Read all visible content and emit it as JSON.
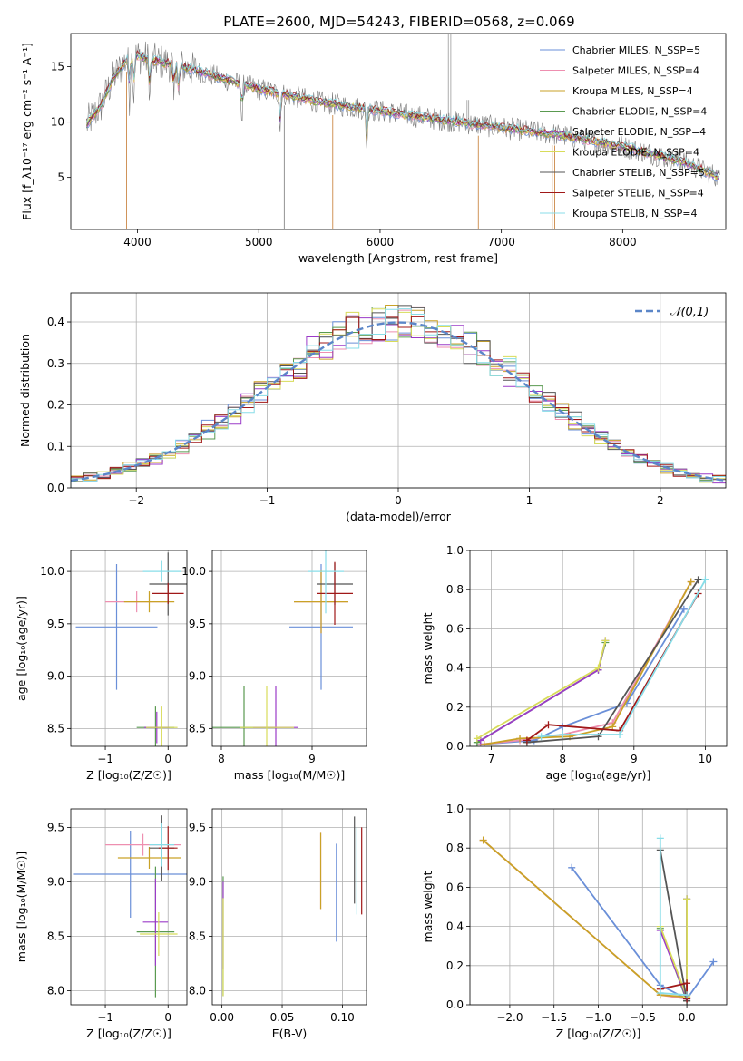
{
  "figure_title": "PLATE=2600, MJD=54243, FIBERID=0568, z=0.069",
  "colors": [
    "#6a8fd8",
    "#ee8fb0",
    "#c9a227",
    "#5a9a50",
    "#9b3bc8",
    "#d8dc5a",
    "#555555",
    "#a01818",
    "#88dde8"
  ],
  "chart_data": [
    {
      "id": "spectrum",
      "type": "line",
      "xlabel": "wavelength [Angstrom, rest frame]",
      "ylabel": "Flux [f_λ10⁻¹⁷ erg cm⁻² s⁻¹ A⁻¹]",
      "xlim": [
        3450,
        8850
      ],
      "ylim": [
        0.3,
        18
      ],
      "xticks": [
        4000,
        5000,
        6000,
        7000,
        8000
      ],
      "yticks": [
        5,
        10,
        15
      ],
      "grid": false,
      "legend_placement": "top-right",
      "series": [
        {
          "name": "Chabrier MILES, N_SSP=5"
        },
        {
          "name": "Salpeter MILES, N_SSP=4"
        },
        {
          "name": "Kroupa MILES, N_SSP=4"
        },
        {
          "name": "Chabrier ELODIE, N_SSP=4"
        },
        {
          "name": "Salpeter ELODIE, N_SSP=4"
        },
        {
          "name": "Kroupa ELODIE, N_SSP=4"
        },
        {
          "name": "Chabrier STELIB, N_SSP=5"
        },
        {
          "name": "Salpeter STELIB, N_SSP=4"
        },
        {
          "name": "Kroupa STELIB, N_SSP=4"
        }
      ],
      "continuum": {
        "x": [
          3580,
          3700,
          3800,
          3900,
          4000,
          4100,
          4300,
          4500,
          4800,
          5000,
          5500,
          6000,
          6500,
          7000,
          7500,
          8000,
          8500,
          8800
        ],
        "y": [
          9.8,
          11.5,
          14.0,
          15.5,
          16.0,
          15.6,
          15.2,
          14.6,
          13.6,
          13.0,
          11.8,
          11.0,
          10.2,
          9.5,
          8.8,
          7.8,
          6.4,
          5.0
        ]
      }
    },
    {
      "id": "residuals",
      "type": "step",
      "xlabel": "(data-model)/error",
      "ylabel": "Normed distribution",
      "xlim": [
        -2.5,
        2.5
      ],
      "ylim": [
        0,
        0.47
      ],
      "xticks": [
        -2,
        -1,
        0,
        1,
        2
      ],
      "yticks": [
        0.0,
        0.1,
        0.2,
        0.3,
        0.4
      ],
      "grid": true,
      "legend_placement": "top-right",
      "reference": {
        "name": "𝒩(0,1)",
        "mean": 0,
        "sigma": 1
      }
    },
    {
      "id": "age-vs-Z",
      "type": "errorbar",
      "xlabel": "Z [log₁₀(Z/Z☉)]",
      "ylabel": "age  [log₁₀(age/yr)]",
      "xlim": [
        -1.55,
        0.3
      ],
      "ylim": [
        8.33,
        10.2
      ],
      "xticks": [
        -1,
        0
      ],
      "yticks": [
        8.5,
        9.0,
        9.5,
        10.0
      ],
      "grid": true,
      "points": [
        {
          "c": 0,
          "x": -0.82,
          "xerr": 0.65,
          "y": 9.47,
          "yerr": 0.6
        },
        {
          "c": 1,
          "x": -0.5,
          "xerr": 0.5,
          "y": 9.71,
          "yerr": 0.1
        },
        {
          "c": 2,
          "x": -0.3,
          "xerr": 0.4,
          "y": 9.71,
          "yerr": 0.1
        },
        {
          "c": 3,
          "x": -0.2,
          "xerr": 0.3,
          "y": 8.51,
          "yerr": 0.2
        },
        {
          "c": 4,
          "x": -0.18,
          "xerr": 0.2,
          "y": 8.51,
          "yerr": 0.15
        },
        {
          "c": 5,
          "x": -0.1,
          "xerr": 0.25,
          "y": 8.51,
          "yerr": 0.2
        },
        {
          "c": 6,
          "x": 0,
          "xerr": 0.3,
          "y": 9.88,
          "yerr": 0.3
        },
        {
          "c": 7,
          "x": 0,
          "xerr": 0.25,
          "y": 9.79,
          "yerr": 0.1
        },
        {
          "c": 8,
          "x": -0.1,
          "xerr": 0.3,
          "y": 10.0,
          "yerr": 0.1
        }
      ]
    },
    {
      "id": "age-vs-mass",
      "type": "errorbar",
      "xlabel": "mass [log₁₀(M/M☉)]",
      "ylabel": "",
      "xlim": [
        7.9,
        9.6
      ],
      "ylim": [
        8.33,
        10.2
      ],
      "xticks": [
        8,
        9
      ],
      "yticks": [
        8.5,
        9.0,
        9.5,
        10.0
      ],
      "grid": true,
      "points": [
        {
          "c": 0,
          "x": 9.1,
          "xerr": 0.35,
          "y": 9.47,
          "yerr": 0.6
        },
        {
          "c": 1,
          "x": 9.1,
          "xerr": 0.3,
          "y": 9.71,
          "yerr": 0.3
        },
        {
          "c": 2,
          "x": 9.1,
          "xerr": 0.3,
          "y": 9.71,
          "yerr": 0.3
        },
        {
          "c": 3,
          "x": 8.25,
          "xerr": 0.35,
          "y": 8.51,
          "yerr": 0.4
        },
        {
          "c": 4,
          "x": 8.6,
          "xerr": 0.25,
          "y": 8.51,
          "yerr": 0.4
        },
        {
          "c": 5,
          "x": 8.5,
          "xerr": 0.3,
          "y": 8.51,
          "yerr": 0.4
        },
        {
          "c": 6,
          "x": 9.25,
          "xerr": 0.2,
          "y": 9.88,
          "yerr": 0.2
        },
        {
          "c": 7,
          "x": 9.25,
          "xerr": 0.2,
          "y": 9.79,
          "yerr": 0.3
        },
        {
          "c": 8,
          "x": 9.15,
          "xerr": 0.2,
          "y": 10.0,
          "yerr": 0.4
        }
      ]
    },
    {
      "id": "weight-vs-age",
      "type": "line",
      "xlabel": "age  [log₁₀(age/yr)]",
      "ylabel": "mass weight",
      "xlim": [
        6.7,
        10.3
      ],
      "ylim": [
        0,
        1.0
      ],
      "xticks": [
        7,
        8,
        9,
        10
      ],
      "yticks": [
        0.0,
        0.2,
        0.4,
        0.6,
        0.8,
        1.0
      ],
      "grid": true,
      "series": [
        {
          "c": 0,
          "x": [
            6.85,
            7.6,
            8.0,
            8.9,
            9.7
          ],
          "y": [
            0.01,
            0.03,
            0.1,
            0.22,
            0.7
          ]
        },
        {
          "c": 1,
          "x": [
            6.85,
            7.4,
            8.0,
            8.7,
            9.8
          ],
          "y": [
            0.01,
            0.03,
            0.06,
            0.12,
            0.84
          ]
        },
        {
          "c": 2,
          "x": [
            6.9,
            7.4,
            8.1,
            8.7,
            9.8
          ],
          "y": [
            0.01,
            0.04,
            0.05,
            0.1,
            0.84
          ]
        },
        {
          "c": 3,
          "x": [
            6.8,
            8.5,
            8.6
          ],
          "y": [
            0.02,
            0.39,
            0.53
          ]
        },
        {
          "c": 4,
          "x": [
            6.85,
            8.5,
            8.6
          ],
          "y": [
            0.03,
            0.39,
            0.54
          ]
        },
        {
          "c": 5,
          "x": [
            6.8,
            8.5,
            8.6
          ],
          "y": [
            0.04,
            0.4,
            0.54
          ]
        },
        {
          "c": 6,
          "x": [
            7.5,
            8.5,
            9.9
          ],
          "y": [
            0.02,
            0.05,
            0.85
          ]
        },
        {
          "c": 7,
          "x": [
            7.5,
            7.8,
            8.8,
            9.9
          ],
          "y": [
            0.03,
            0.11,
            0.08,
            0.78
          ]
        },
        {
          "c": 8,
          "x": [
            7.7,
            8.0,
            8.8,
            10.0
          ],
          "y": [
            0.05,
            0.06,
            0.06,
            0.85
          ]
        }
      ]
    },
    {
      "id": "mass-vs-Z",
      "type": "errorbar",
      "xlabel": "Z [log₁₀(Z/Z☉)]",
      "ylabel": "mass [log₁₀(M/M☉)]",
      "xlim": [
        -1.55,
        0.3
      ],
      "ylim": [
        7.87,
        9.67
      ],
      "xticks": [
        -1,
        0
      ],
      "yticks": [
        8.0,
        8.5,
        9.0,
        9.5
      ],
      "grid": true,
      "points": [
        {
          "c": 0,
          "x": -0.6,
          "xerr": 0.9,
          "y": 9.07,
          "yerr": 0.4
        },
        {
          "c": 1,
          "x": -0.4,
          "xerr": 0.6,
          "y": 9.34,
          "yerr": 0.1
        },
        {
          "c": 2,
          "x": -0.3,
          "xerr": 0.5,
          "y": 9.22,
          "yerr": 0.1
        },
        {
          "c": 3,
          "x": -0.2,
          "xerr": 0.3,
          "y": 8.54,
          "yerr": 0.6
        },
        {
          "c": 4,
          "x": -0.2,
          "xerr": 0.2,
          "y": 8.63,
          "yerr": 0.4
        },
        {
          "c": 5,
          "x": -0.15,
          "xerr": 0.3,
          "y": 8.52,
          "yerr": 0.2
        },
        {
          "c": 6,
          "x": -0.1,
          "xerr": 0.2,
          "y": 9.31,
          "yerr": 0.3
        },
        {
          "c": 7,
          "x": 0,
          "xerr": 0.15,
          "y": 9.31,
          "yerr": 0.2
        },
        {
          "c": 8,
          "x": -0.1,
          "xerr": 0.2,
          "y": 9.34,
          "yerr": 0.2
        }
      ]
    },
    {
      "id": "mass-vs-EBV",
      "type": "errorbar",
      "xlabel": "E(B-V)",
      "ylabel": "",
      "xlim": [
        -0.008,
        0.12
      ],
      "ylim": [
        7.87,
        9.67
      ],
      "xticks": [
        0.0,
        0.05,
        0.1
      ],
      "yticks": [
        8.0,
        8.5,
        9.0,
        9.5
      ],
      "grid": true,
      "points": [
        {
          "c": 0,
          "x": 0.095,
          "xerr": 0,
          "y": 8.9,
          "yerr": 0.45
        },
        {
          "c": 1,
          "x": 0.082,
          "xerr": 0,
          "y": 9.1,
          "yerr": 0.35
        },
        {
          "c": 2,
          "x": 0.082,
          "xerr": 0,
          "y": 9.1,
          "yerr": 0.35
        },
        {
          "c": 3,
          "x": 0.001,
          "xerr": 0,
          "y": 8.5,
          "yerr": 0.55
        },
        {
          "c": 4,
          "x": 0.001,
          "xerr": 0,
          "y": 8.6,
          "yerr": 0.4
        },
        {
          "c": 5,
          "x": 0.001,
          "xerr": 0,
          "y": 8.4,
          "yerr": 0.45
        },
        {
          "c": 6,
          "x": 0.11,
          "xerr": 0,
          "y": 9.2,
          "yerr": 0.4
        },
        {
          "c": 7,
          "x": 0.116,
          "xerr": 0,
          "y": 9.1,
          "yerr": 0.4
        },
        {
          "c": 8,
          "x": 0.112,
          "xerr": 0,
          "y": 9.1,
          "yerr": 0.4
        }
      ]
    },
    {
      "id": "weight-vs-Z",
      "type": "line",
      "xlabel": "Z [log₁₀(Z/Z☉)]",
      "ylabel": "mass weight",
      "xlim": [
        -2.45,
        0.45
      ],
      "ylim": [
        0,
        1.0
      ],
      "xticks": [
        -2.0,
        -1.5,
        -1.0,
        -0.5,
        0.0
      ],
      "yticks": [
        0.0,
        0.2,
        0.4,
        0.6,
        0.8,
        1.0
      ],
      "grid": true,
      "series": [
        {
          "c": 0,
          "x": [
            -1.3,
            -0.3,
            0.0,
            0.3
          ],
          "y": [
            0.7,
            0.1,
            0.03,
            0.22
          ]
        },
        {
          "c": 1,
          "x": [
            -2.3,
            -0.3,
            0.0
          ],
          "y": [
            0.84,
            0.05,
            0.03
          ]
        },
        {
          "c": 2,
          "x": [
            -2.3,
            -0.3,
            0.0
          ],
          "y": [
            0.84,
            0.05,
            0.04
          ]
        },
        {
          "c": 3,
          "x": [
            -0.3,
            0.0,
            0.0
          ],
          "y": [
            0.39,
            0.02,
            0.54
          ]
        },
        {
          "c": 4,
          "x": [
            -0.3,
            0.0,
            0.0
          ],
          "y": [
            0.38,
            0.03,
            0.54
          ]
        },
        {
          "c": 5,
          "x": [
            -0.3,
            0.0,
            0.0
          ],
          "y": [
            0.4,
            0.04,
            0.54
          ]
        },
        {
          "c": 6,
          "x": [
            -0.3,
            0.0,
            0.0
          ],
          "y": [
            0.79,
            0.02,
            0.05
          ]
        },
        {
          "c": 7,
          "x": [
            -0.3,
            0.0,
            0.0
          ],
          "y": [
            0.08,
            0.11,
            0.03
          ]
        },
        {
          "c": 8,
          "x": [
            -0.3,
            -0.3,
            0.0
          ],
          "y": [
            0.85,
            0.06,
            0.05
          ]
        }
      ]
    }
  ]
}
